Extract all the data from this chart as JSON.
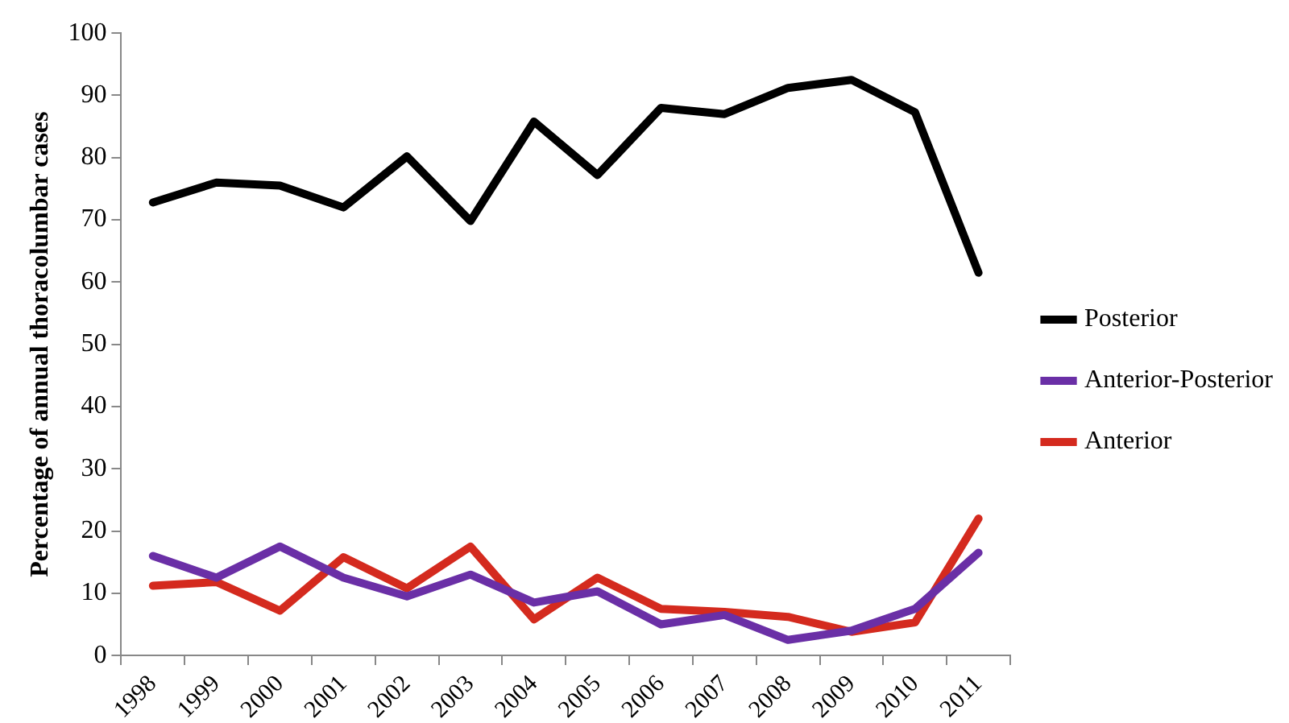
{
  "chart_data": {
    "type": "line",
    "ylabel": "Percentage of annual thoracolumbar cases",
    "categories": [
      "1998",
      "1999",
      "2000",
      "2001",
      "2002",
      "2003",
      "2004",
      "2005",
      "2006",
      "2007",
      "2008",
      "2009",
      "2010",
      "2011"
    ],
    "series": [
      {
        "name": "Posterior",
        "color": "#000000",
        "values": [
          72.8,
          76,
          75.5,
          72,
          80.2,
          69.8,
          85.8,
          77.2,
          88,
          87,
          91.2,
          92.5,
          87.3,
          61.5
        ]
      },
      {
        "name": "Anterior-Posterior",
        "color": "#6a2fa6",
        "values": [
          16,
          12.5,
          17.5,
          12.5,
          9.5,
          13,
          8.5,
          10.3,
          5,
          6.5,
          2.5,
          4,
          7.5,
          16.5
        ]
      },
      {
        "name": "Anterior",
        "color": "#d42a1e",
        "values": [
          11.2,
          11.8,
          7.2,
          15.8,
          10.8,
          17.5,
          5.8,
          12.5,
          7.5,
          7,
          6.2,
          3.8,
          5.3,
          22
        ]
      }
    ],
    "ylim": [
      0,
      100
    ],
    "yticks": [
      0,
      10,
      20,
      30,
      40,
      50,
      60,
      70,
      80,
      90,
      100
    ],
    "grid": false,
    "legend": "right",
    "marker": "none",
    "line_style": "solid"
  }
}
